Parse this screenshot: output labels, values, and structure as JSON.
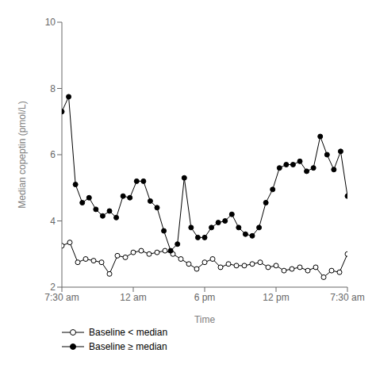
{
  "chart_data": {
    "type": "line",
    "xlabel": "Time",
    "ylabel": "Median copeptin (pmol/L)",
    "xlim": [
      0,
      36
    ],
    "xticks": [
      {
        "value": 0,
        "label": "7:30 am"
      },
      {
        "value": 9,
        "label": "12 am"
      },
      {
        "value": 18,
        "label": "6 pm"
      },
      {
        "value": 27,
        "label": "12 pm"
      },
      {
        "value": 36,
        "label": "7:30 am"
      }
    ],
    "ylim": [
      2,
      10
    ],
    "yticks": [
      2,
      4,
      6,
      8,
      10
    ],
    "grid": false,
    "legend": "bottom",
    "series": [
      {
        "name": "Baseline < median",
        "color": "#000000",
        "marker": "open_circle",
        "x": [
          0,
          1,
          2,
          3,
          4,
          5,
          6,
          7,
          8,
          9,
          10,
          11,
          12,
          13,
          14,
          15,
          16,
          17,
          18,
          19,
          20,
          21,
          22,
          23,
          24,
          25,
          26,
          27,
          28,
          29,
          30,
          31,
          32,
          33,
          34,
          35,
          36
        ],
        "values": [
          3.25,
          3.35,
          2.75,
          2.85,
          2.8,
          2.75,
          2.4,
          2.95,
          2.9,
          3.05,
          3.1,
          3.0,
          3.05,
          3.1,
          3.0,
          2.85,
          2.7,
          2.55,
          2.75,
          2.85,
          2.6,
          2.7,
          2.65,
          2.65,
          2.7,
          2.75,
          2.6,
          2.65,
          2.5,
          2.55,
          2.6,
          2.5,
          2.6,
          2.3,
          2.5,
          2.45,
          3.0
        ]
      },
      {
        "name": "Baseline ≥ median",
        "color": "#000000",
        "marker": "circle",
        "x": [
          0,
          0.857143,
          1.714286,
          2.571429,
          3.428571,
          4.285714,
          5.142857,
          6,
          6.857143,
          7.714286,
          8.571429,
          9.428571,
          10.285714,
          11.142857,
          12,
          12.857143,
          13.714286,
          14.571429,
          15.428571,
          16.285714,
          17.142857,
          18,
          18.857143,
          19.714286,
          20.571429,
          21.428571,
          22.285714,
          23.142857,
          24,
          24.857143,
          25.714286,
          26.571429,
          27.428571,
          28.285714,
          29.142857,
          30,
          30.857143,
          31.714286,
          32.571429,
          33.428571,
          34.285714,
          35.142857,
          36
        ],
        "values": [
          7.3,
          7.75,
          5.1,
          4.55,
          4.7,
          4.35,
          4.15,
          4.3,
          4.1,
          4.75,
          4.7,
          5.2,
          5.2,
          4.6,
          4.4,
          3.7,
          3.1,
          3.3,
          5.3,
          3.8,
          3.5,
          3.5,
          3.8,
          3.95,
          4.0,
          4.2,
          3.8,
          3.6,
          3.55,
          3.8,
          4.55,
          4.95,
          5.6,
          5.7,
          5.7,
          5.8,
          5.5,
          5.6,
          6.55,
          6.0,
          5.55,
          6.1,
          4.75
        ]
      }
    ]
  }
}
